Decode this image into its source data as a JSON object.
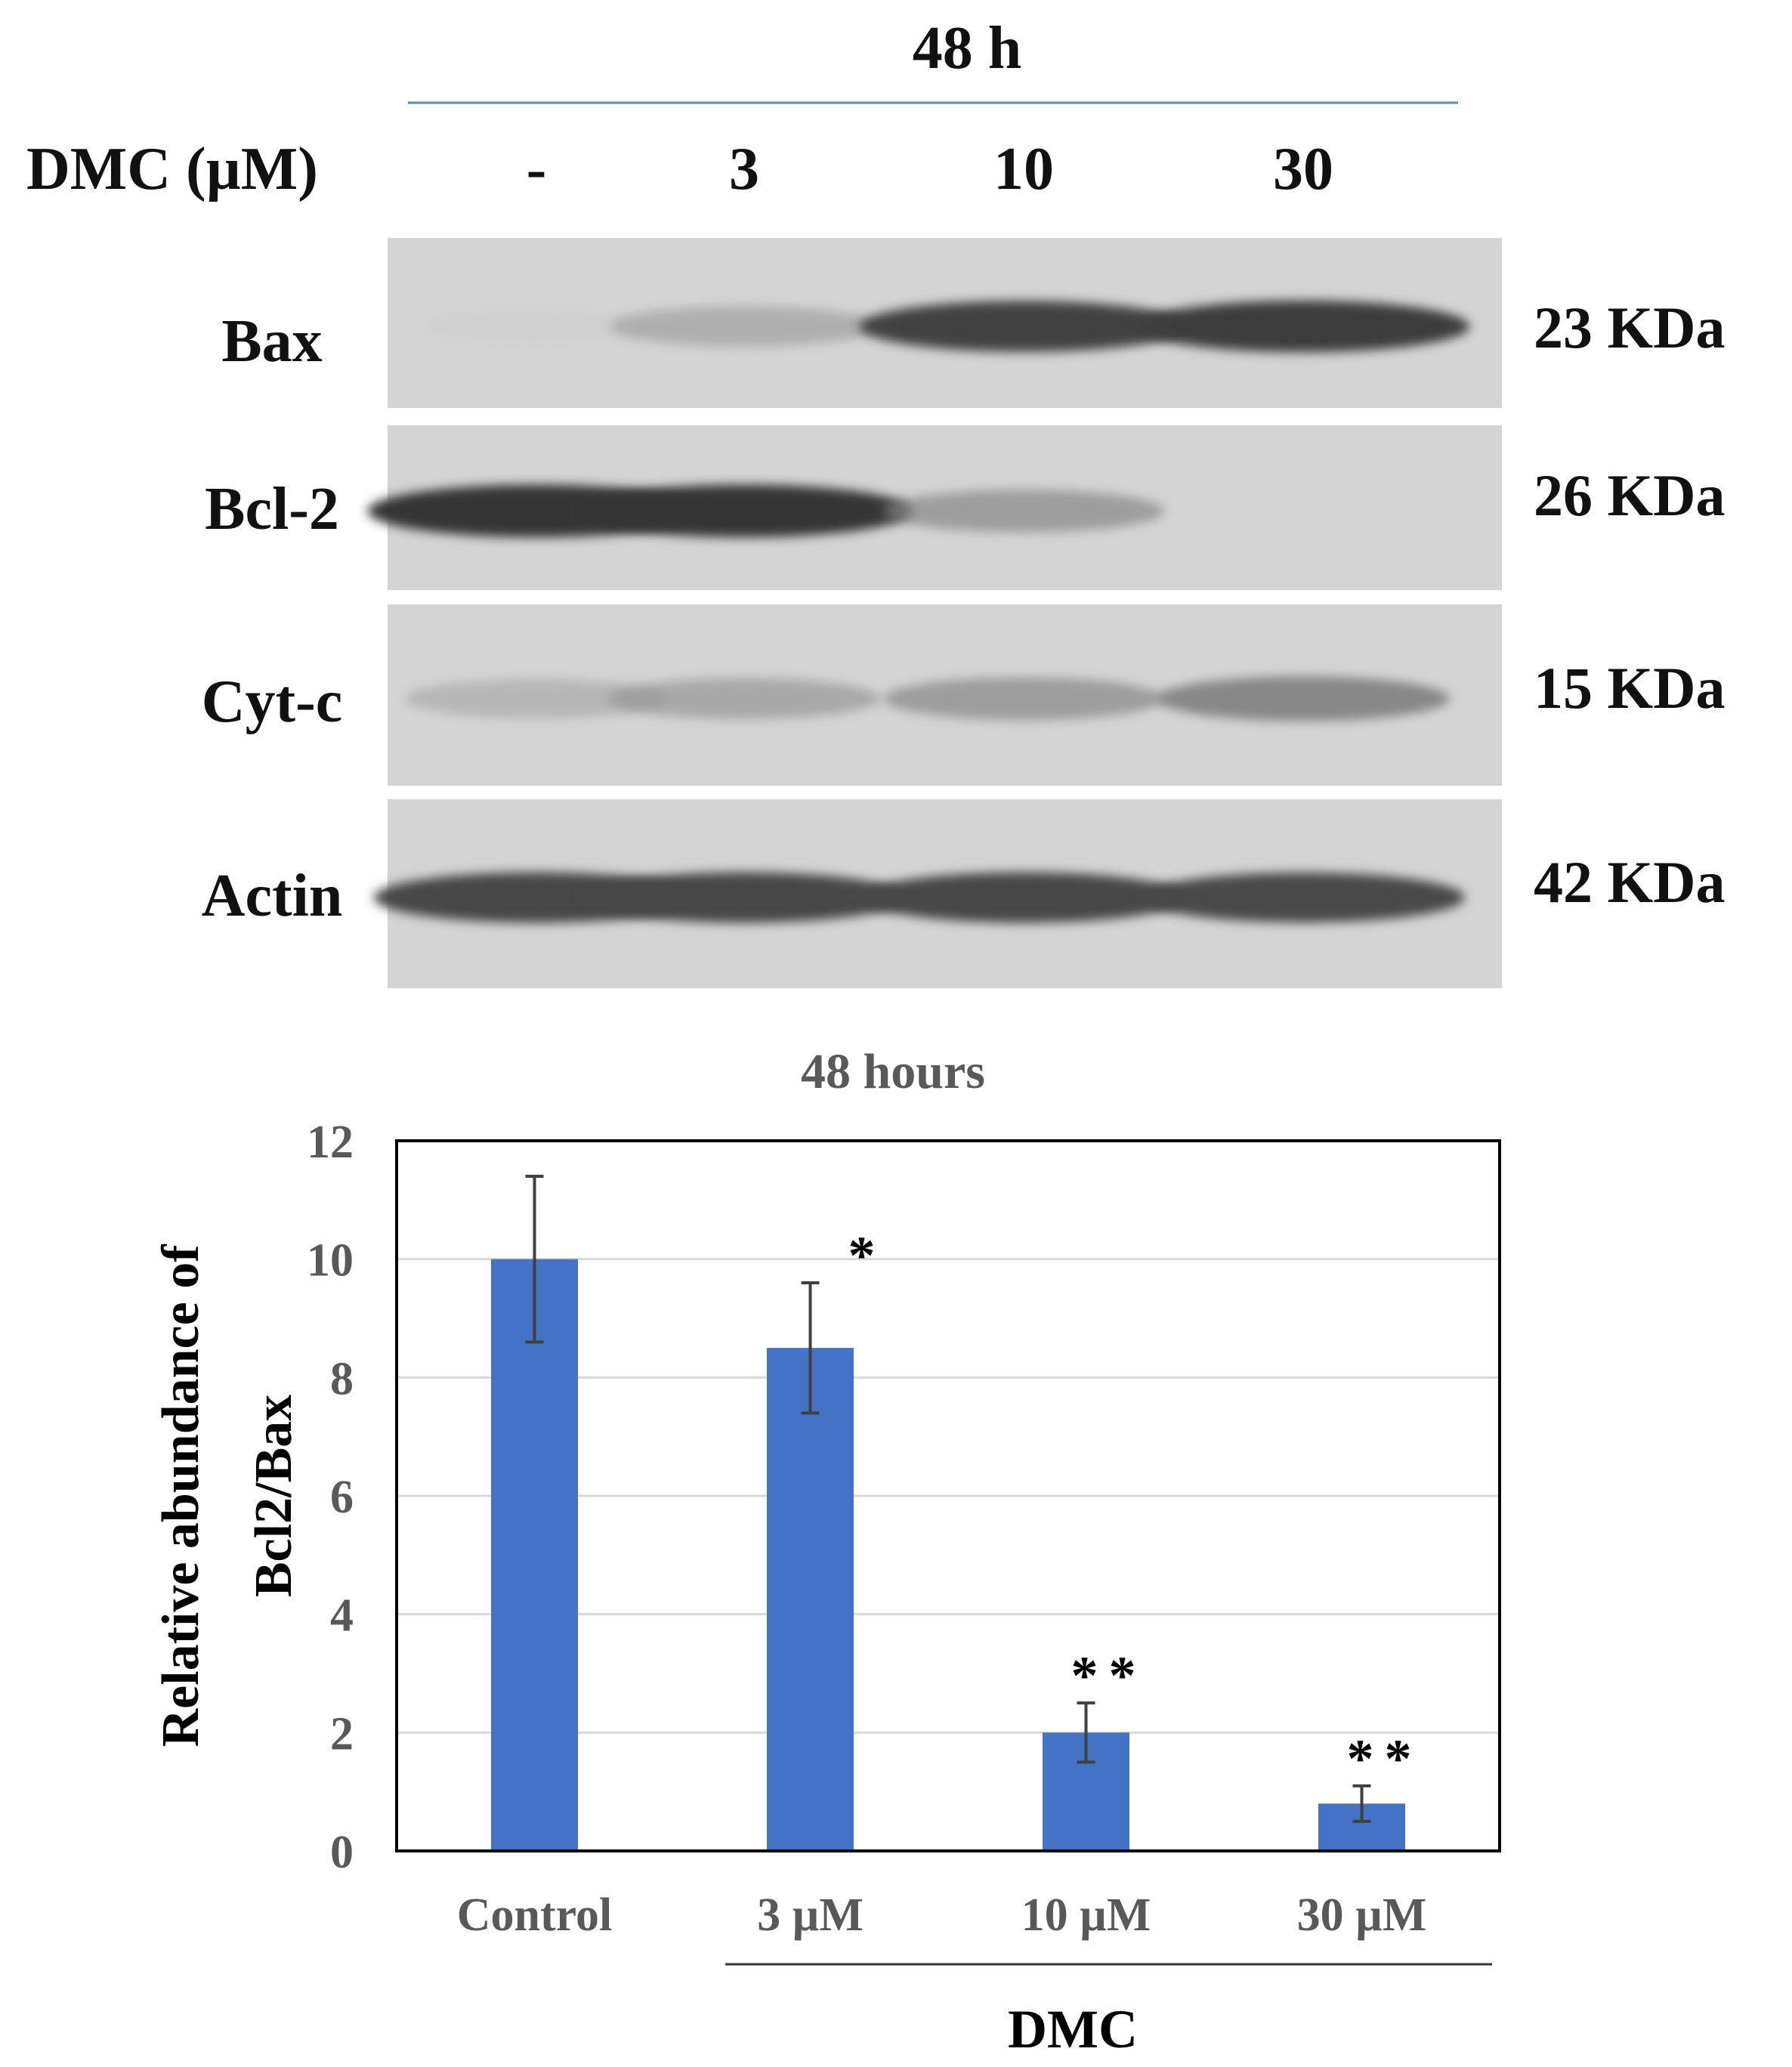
{
  "blot": {
    "time_label": "48 h",
    "dose_label": "DMC (µM)",
    "lanes": [
      "-",
      "3",
      "10",
      "30"
    ],
    "rows": [
      {
        "protein": "Bax",
        "size": "23 KDa",
        "intensity": [
          0.06,
          0.35,
          0.85,
          0.88
        ]
      },
      {
        "protein": "Bcl-2",
        "size": "26 KDa",
        "intensity": [
          0.92,
          0.92,
          0.45,
          0.0
        ]
      },
      {
        "protein": "Cyt-c",
        "size": "15 KDa",
        "intensity": [
          0.3,
          0.38,
          0.45,
          0.55
        ]
      },
      {
        "protein": "Actin",
        "size": "42 KDa",
        "intensity": [
          0.82,
          0.82,
          0.82,
          0.8
        ]
      }
    ]
  },
  "chart_data": {
    "type": "bar",
    "title": "48 hours",
    "ylabel_line1": "Relative abundance of",
    "ylabel_line2": "Bcl2/Bax",
    "xlabel": "DMC",
    "categories": [
      "Control",
      "3 µM",
      "10 µM",
      "30 µM"
    ],
    "values": [
      10.0,
      8.5,
      2.0,
      0.8
    ],
    "errors": [
      1.4,
      1.1,
      0.5,
      0.3
    ],
    "significance": [
      "",
      "*",
      "**",
      "**"
    ],
    "ylim": [
      0,
      12
    ],
    "yticks": [
      "0",
      "2",
      "4",
      "6",
      "8",
      "10",
      "12"
    ],
    "grid": true,
    "bar_color": "#4472C4",
    "axis_text_color": "#595959"
  }
}
